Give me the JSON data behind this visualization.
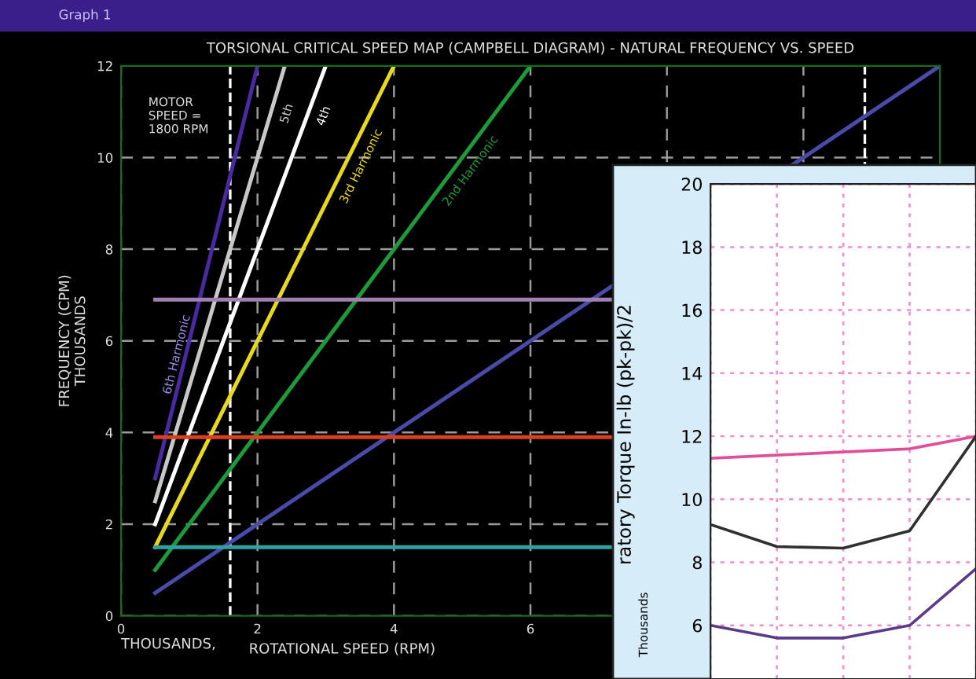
{
  "chart_data": [
    {
      "type": "line",
      "title": "TORSIONAL CRITICAL SPEED MAP (CAMPBELL DIAGRAM) - NATURAL FREQUENCY VS. SPEED",
      "xlabel": "ROTATIONAL SPEED (RPM)",
      "ylabel": "FREQUENCY (CPM)\nTHOUSANDS",
      "xlim": [
        0,
        12
      ],
      "ylim": [
        0,
        12
      ],
      "xticks": [
        0,
        2,
        4,
        6,
        {
          "value": 8,
          "label": null
        },
        {
          "value": 10,
          "label": null
        }
      ],
      "yticks": [
        0,
        2,
        4,
        6,
        8,
        10,
        12
      ],
      "grid": true,
      "series": [
        {
          "color": "#4a4aa8",
          "x": [
            0.5,
            12
          ],
          "values": [
            0.5,
            12
          ]
        },
        {
          "name": "2nd Harmonic",
          "color": "#1e9a3a",
          "x": [
            0.5,
            6
          ],
          "values": [
            1.0,
            12
          ]
        },
        {
          "name": "3rd Harmonic",
          "color": "#e8d820",
          "x": [
            0.5,
            4
          ],
          "values": [
            1.5,
            12
          ]
        },
        {
          "name": "4th",
          "color": "#ffffff",
          "x": [
            0.5,
            3
          ],
          "values": [
            2.0,
            12
          ]
        },
        {
          "name": "5th",
          "color": "#c8c8c8",
          "x": [
            0.5,
            2.4
          ],
          "values": [
            2.5,
            12
          ]
        },
        {
          "name": "6th Harmonic",
          "color": "#4a2aa0",
          "x": [
            0.5,
            2
          ],
          "values": [
            3.0,
            12
          ]
        },
        {
          "color": "#a080b0",
          "x": [
            0.5,
            7.2
          ],
          "values": [
            6.9,
            6.9
          ]
        },
        {
          "color": "#d84020",
          "x": [
            0.5,
            7.2
          ],
          "values": [
            3.9,
            3.9
          ]
        },
        {
          "color": "#30a0a0",
          "x": [
            0.5,
            7.2
          ],
          "values": [
            1.5,
            1.5
          ]
        }
      ],
      "ref_lines": [
        {
          "axis": "x",
          "value": 1.6,
          "color": "#ffffff",
          "line_style": "dashed"
        },
        {
          "axis": "x",
          "value": 10.9,
          "color": "#ffffff",
          "line_style": "dashed"
        }
      ],
      "annotations": [
        "Graph 1",
        "MOTOR\nSPEED =\n1800 RPM",
        "THOUSANDS,"
      ]
    },
    {
      "type": "line",
      "ylabel": "ratory Torque In-lb (pk-pk)/2",
      "ylim": [
        4.3,
        20
      ],
      "yticks": [
        6,
        8,
        10,
        12,
        14,
        16,
        18,
        20
      ],
      "grid": true,
      "tick_labels": "y",
      "categories": [
        null,
        null,
        null,
        null,
        null
      ],
      "series": [
        {
          "color": "#e0509a",
          "values": [
            11.3,
            11.4,
            11.5,
            11.6,
            12.0
          ]
        },
        {
          "color": "#303030",
          "values": [
            9.2,
            8.5,
            8.45,
            9.0,
            12.0
          ]
        },
        {
          "color": "#5a3a8a",
          "values": [
            6.0,
            5.6,
            5.6,
            6.0,
            7.8
          ]
        }
      ],
      "annotations": [
        "Thousands"
      ]
    }
  ]
}
